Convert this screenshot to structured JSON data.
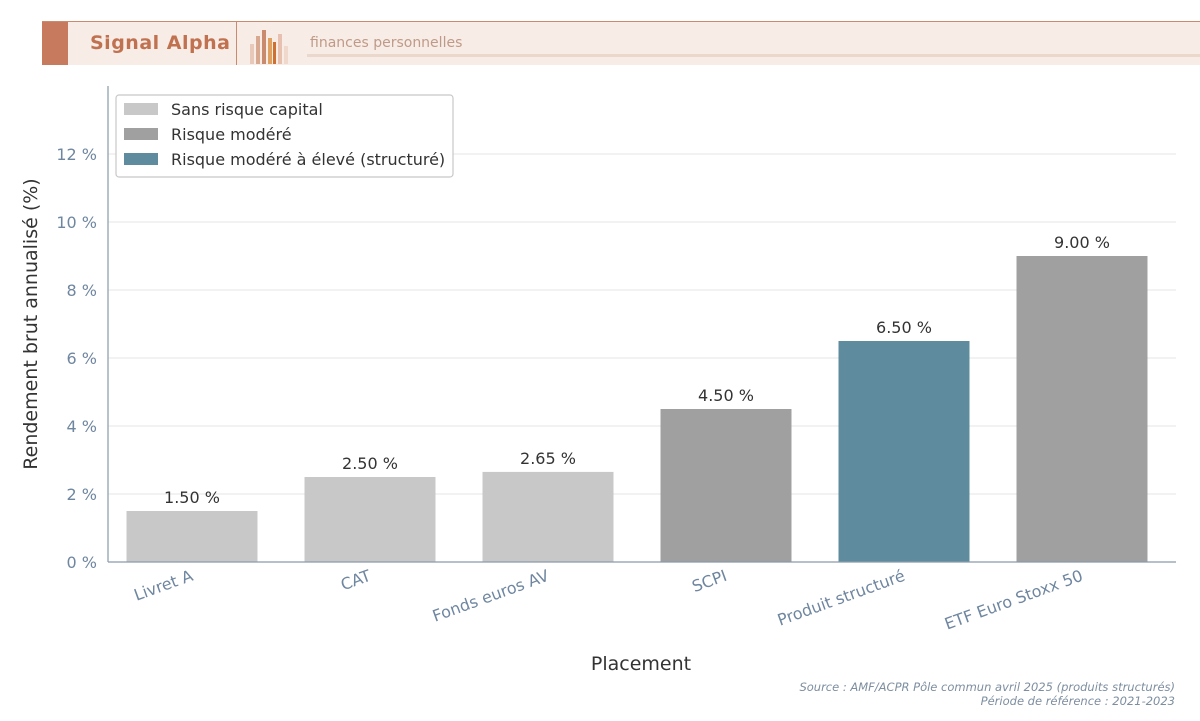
{
  "header": {
    "brand": "Signal Alpha",
    "tagline": "finances personnelles"
  },
  "chart_data": {
    "type": "bar",
    "categories": [
      "Livret A",
      "CAT",
      "Fonds euros AV",
      "SCPI",
      "Produit structuré",
      "ETF Euro Stoxx 50"
    ],
    "values": [
      1.5,
      2.5,
      2.65,
      4.5,
      6.5,
      9.0
    ],
    "data_labels": [
      "1.50 %",
      "2.50 %",
      "2.65 %",
      "4.50 %",
      "6.50 %",
      "9.00 %"
    ],
    "bar_groups": [
      0,
      0,
      0,
      1,
      2,
      1
    ],
    "legend": [
      {
        "name": "Sans risque capital",
        "color": "#c8c8c8"
      },
      {
        "name": "Risque modéré",
        "color": "#a0a0a0"
      },
      {
        "name": "Risque modéré à élevé (structuré)",
        "color": "#5e8c9e"
      }
    ],
    "legend_position": "top-left",
    "xlabel": "Placement",
    "ylabel": "Rendement brut annualisé (%)",
    "ylim": [
      0,
      14
    ],
    "yticks": [
      0,
      2,
      4,
      6,
      8,
      10,
      12
    ],
    "ytick_labels": [
      "0 %",
      "2 %",
      "4 %",
      "6 %",
      "8 %",
      "10 %",
      "12 %"
    ],
    "grid": "horizontal"
  },
  "source": {
    "line1": "Source : AMF/ACPR Pôle commun avril 2025 (produits structurés)",
    "line2": "Période de référence : 2021-2023"
  }
}
